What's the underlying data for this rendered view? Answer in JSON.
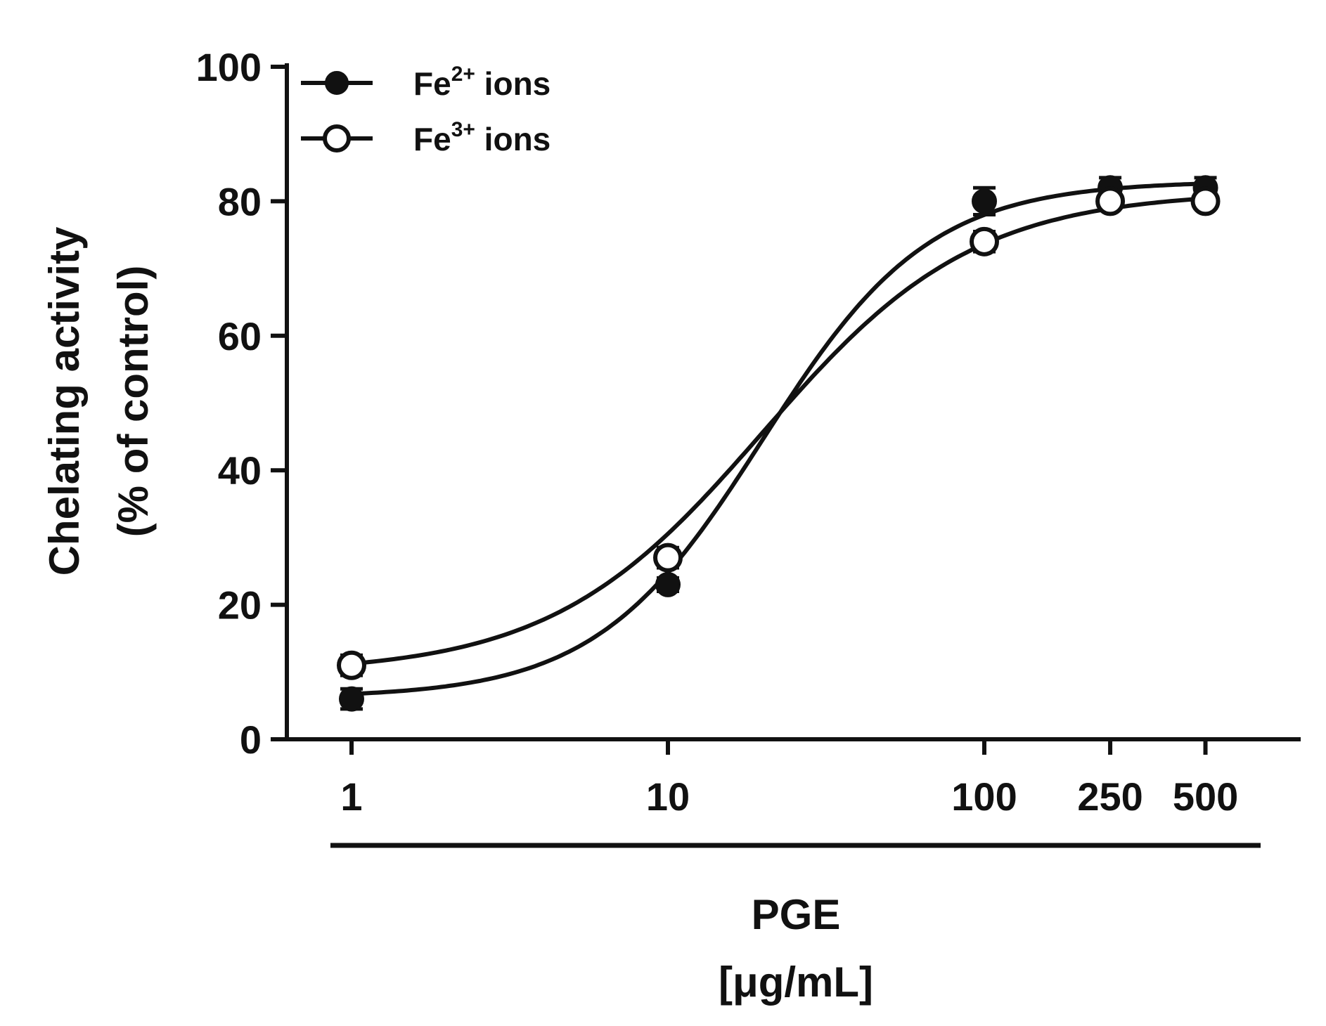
{
  "chart_data": {
    "type": "line",
    "title": "",
    "xscale": "log",
    "x": [
      1,
      10,
      100,
      250,
      500
    ],
    "x_tick_labels": [
      "1",
      "10",
      "100",
      "250",
      "500"
    ],
    "xlabel": "PGE",
    "xlabel_unit": "[μg/mL]",
    "ylabel_line1": "Chelating activity",
    "ylabel_line2": "(% of control)",
    "ylim": [
      0,
      100
    ],
    "y_ticks": [
      0,
      20,
      40,
      60,
      80,
      100
    ],
    "y_tick_labels": [
      "0",
      "20",
      "40",
      "60",
      "80",
      "100"
    ],
    "grid": false,
    "legend_position": "top-left",
    "series": [
      {
        "name": "Fe",
        "name_sup": "2+",
        "name_suffix": " ions",
        "marker": "filled-circle",
        "values": [
          6,
          23,
          80,
          82,
          82
        ],
        "errors": [
          1.5,
          1.0,
          2.0,
          1.5,
          1.5
        ],
        "fit": {
          "bottom": 6.2,
          "top": 83.0,
          "logEC50": 1.3,
          "hill": 1.65
        }
      },
      {
        "name": "Fe",
        "name_sup": "3+",
        "name_suffix": " ions",
        "marker": "open-circle",
        "values": [
          11,
          27,
          74,
          80,
          80
        ],
        "errors": [
          1.5,
          1.5,
          1.5,
          1.0,
          1.0
        ],
        "fit": {
          "bottom": 9.8,
          "top": 81.5,
          "logEC50": 1.3,
          "hill": 1.3
        }
      }
    ],
    "line_color": "#111111"
  }
}
